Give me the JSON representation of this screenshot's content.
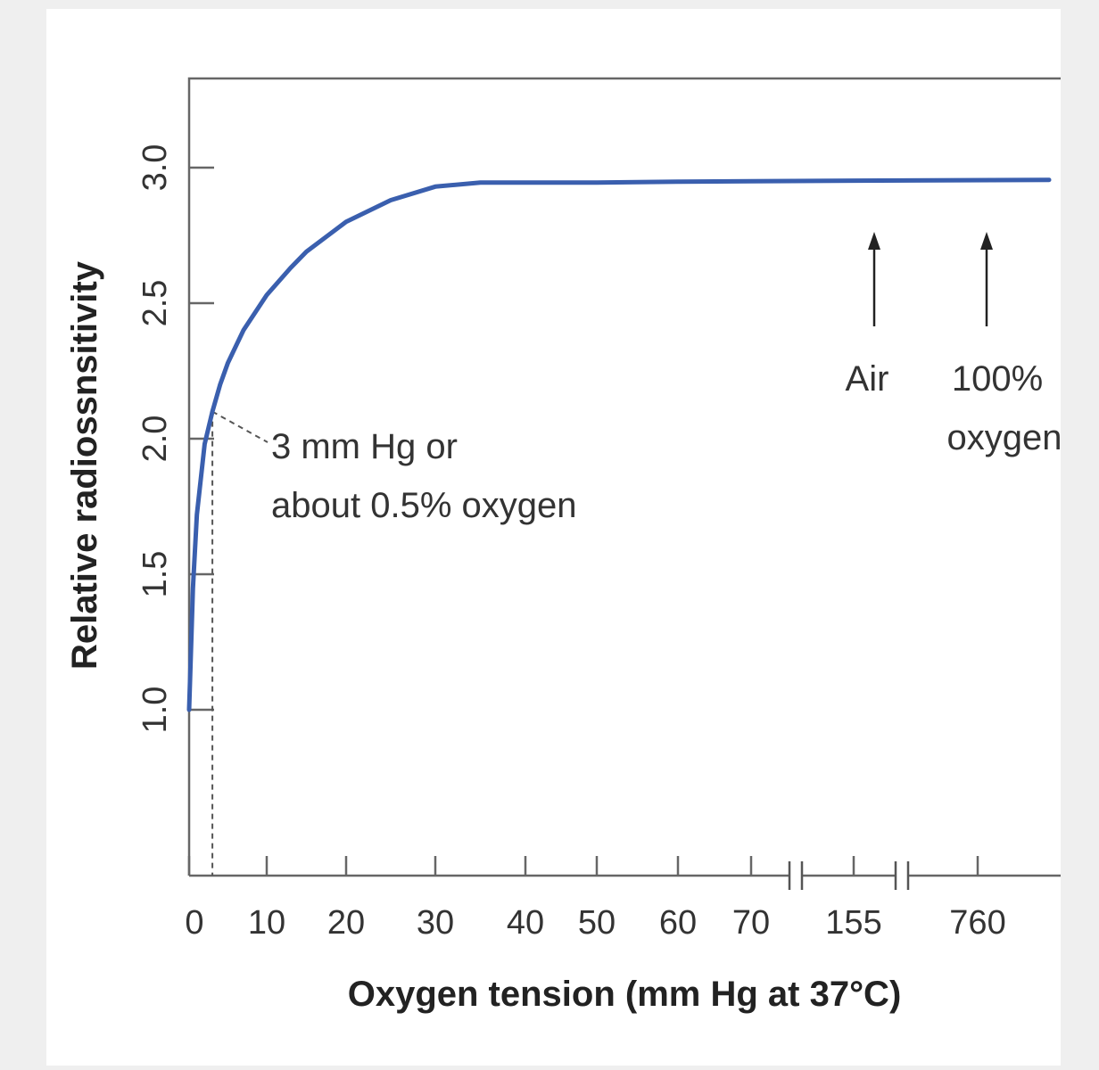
{
  "chart_data": {
    "type": "line",
    "xlabel": "Oxygen tension (mm Hg at 37°C)",
    "ylabel": "Relative radiossnsitivity",
    "x_tick_labels": [
      "0",
      "10",
      "20",
      "30",
      "40",
      "50",
      "60",
      "70",
      "155",
      "760"
    ],
    "y_tick_labels": [
      "1.0",
      "1.5",
      "2.0",
      "2.5",
      "3.0"
    ],
    "y_ticks": [
      1.0,
      1.5,
      2.0,
      2.5,
      3.0
    ],
    "ylim": [
      0.4,
      3.35
    ],
    "axis_breaks": [
      "between 70 and 155",
      "between 155 and 760"
    ],
    "grid": false,
    "series": [
      {
        "color": "#3a5fae",
        "x": [
          0,
          0.5,
          1,
          2,
          3,
          4,
          5,
          7,
          10,
          13,
          15,
          20,
          25,
          30,
          35,
          40,
          50,
          60,
          70,
          155,
          760
        ],
        "y": [
          1.0,
          1.45,
          1.72,
          1.98,
          2.1,
          2.2,
          2.28,
          2.4,
          2.53,
          2.63,
          2.69,
          2.8,
          2.88,
          2.93,
          2.945,
          2.945,
          2.945,
          2.948,
          2.95,
          2.952,
          2.955
        ]
      }
    ],
    "annotations": [
      {
        "text_lines": [
          "3 mm Hg or",
          "about 0.5% oxygen"
        ],
        "x": 3,
        "y": 2.1,
        "style": "dashed leader and dashed drop line to x-axis"
      },
      {
        "text_lines": [
          "Air"
        ],
        "x": 155,
        "arrow": "up"
      },
      {
        "text_lines": [
          "100%",
          "oxygen"
        ],
        "x": 760,
        "arrow": "up"
      }
    ]
  }
}
